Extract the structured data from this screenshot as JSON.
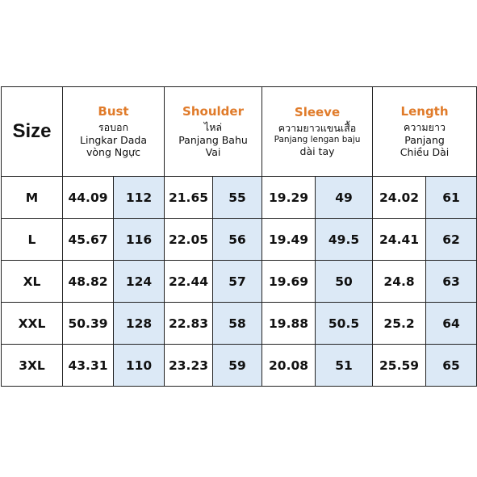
{
  "header": {
    "size_label": "Size",
    "columns": [
      {
        "title": "Bust",
        "lines": [
          "รอบอก",
          "Lingkar Dada",
          "vòng Ngực"
        ]
      },
      {
        "title": "Shoulder",
        "lines": [
          "ไหล่",
          "Panjang Bahu",
          "Vai"
        ]
      },
      {
        "title": "Sleeve",
        "lines": [
          "ความยาวแขนเสื้อ",
          "Panjang lengan baju",
          "dài tay"
        ]
      },
      {
        "title": "Length",
        "lines": [
          "ความยาว",
          "Panjang",
          "Chiều Dài"
        ]
      }
    ]
  },
  "rows": [
    {
      "size": "M",
      "values": [
        "44.09",
        "112",
        "21.65",
        "55",
        "19.29",
        "49",
        "24.02",
        "61"
      ]
    },
    {
      "size": "L",
      "values": [
        "45.67",
        "116",
        "22.05",
        "56",
        "19.49",
        "49.5",
        "24.41",
        "62"
      ]
    },
    {
      "size": "XL",
      "values": [
        "48.82",
        "124",
        "22.44",
        "57",
        "19.69",
        "50",
        "24.8",
        "63"
      ]
    },
    {
      "size": "XXL",
      "values": [
        "50.39",
        "128",
        "22.83",
        "58",
        "19.88",
        "50.5",
        "25.2",
        "64"
      ]
    },
    {
      "size": "3XL",
      "values": [
        "43.31",
        "110",
        "23.23",
        "59",
        "20.08",
        "51",
        "25.59",
        "65"
      ]
    }
  ],
  "colors": {
    "title_accent": "#e07b2a",
    "cm_cell_bg": "#dce9f6",
    "border": "#222222"
  }
}
